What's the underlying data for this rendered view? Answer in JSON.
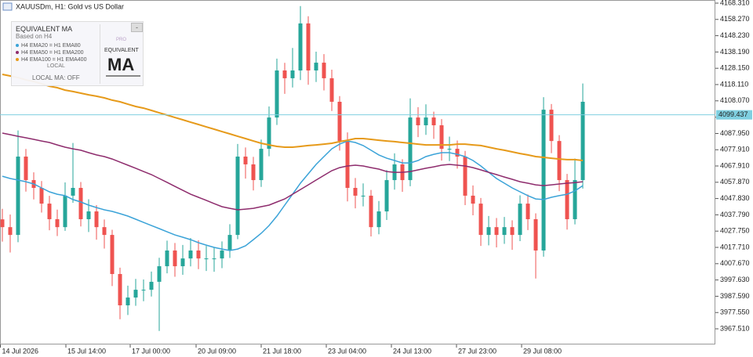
{
  "chart_data": {
    "type": "candlestick",
    "title": "XAUUSDm, H1:  Gold vs US Dollar",
    "open": [
      4035.0,
      4030.2,
      4025.4,
      4073.7,
      4059.2,
      4054.4,
      4044.7,
      4035.1,
      4030.2,
      4049.6,
      4054.4,
      4035.1,
      4039.9,
      4030.2,
      4025.4,
      4001.3,
      3982.0,
      3986.8,
      3991.6,
      3991.6,
      3996.5,
      4006.1,
      4015.8,
      4006.1,
      4010.9,
      4015.8,
      4010.9,
      4010.9,
      4010.9,
      4015.8,
      4025.4,
      4073.7,
      4068.9,
      4059.2,
      4078.5,
      4097.8,
      4126.8,
      4122.0,
      4126.8,
      4155.8,
      4126.8,
      4131.6,
      4122.0,
      4107.5,
      4083.3,
      4054.4,
      4049.6,
      4049.6,
      4030.2,
      4039.9,
      4059.2,
      4068.9,
      4059.2,
      4097.8,
      4093.0,
      4097.8,
      4093.0,
      4078.5,
      4078.5,
      4073.7,
      4049.6,
      4044.7,
      4025.4,
      4030.2,
      4025.4,
      4030.2,
      4025.4,
      4044.7,
      4035.1,
      4015.8,
      4102.6,
      4083.3,
      4059.2,
      4035.1,
      4059.2
    ],
    "high": [
      4041.5,
      4038.0,
      4089.8,
      4078.4,
      4064.0,
      4058.6,
      4049.5,
      4041.0,
      4057.8,
      4082.1,
      4058.0,
      4047.4,
      4043.8,
      4034.9,
      4028.6,
      4005.2,
      3994.1,
      3998.3,
      3997.9,
      4002.8,
      4011.3,
      4021.9,
      4020.4,
      4019.2,
      4023.5,
      4022.1,
      4018.6,
      4017.9,
      4021.4,
      4032.0,
      4081.5,
      4079.3,
      4073.5,
      4084.2,
      4104.6,
      4134.1,
      4131.5,
      4140.7,
      4166.5,
      4160.2,
      4138.4,
      4136.9,
      4127.3,
      4111.0,
      4088.6,
      4060.5,
      4057.2,
      4053.1,
      4046.3,
      4065.4,
      4075.7,
      4072.1,
      4109.6,
      4104.2,
      4105.9,
      4101.4,
      4096.8,
      4086.0,
      4083.6,
      4077.2,
      4055.9,
      4048.2,
      4037.1,
      4035.8,
      4036.5,
      4034.4,
      4049.8,
      4050.3,
      4038.7,
      4110.3,
      4106.1,
      4086.9,
      4063.0,
      4072.5,
      4118.8
    ],
    "low": [
      4021.3,
      4014.6,
      4020.9,
      4052.1,
      4047.3,
      4039.2,
      4028.3,
      4024.7,
      4027.9,
      4045.2,
      4030.6,
      4027.2,
      4022.5,
      4017.0,
      3993.9,
      3973.4,
      3976.0,
      3981.7,
      3984.5,
      3987.4,
      3966.2,
      4001.7,
      3999.6,
      4000.8,
      4006.0,
      4004.3,
      4003.2,
      4002.7,
      4004.9,
      4011.2,
      4022.8,
      4060.1,
      4052.8,
      4055.0,
      4073.9,
      4093.2,
      4112.4,
      4116.3,
      4120.9,
      4118.0,
      4119.7,
      4114.5,
      4101.8,
      4077.4,
      4046.1,
      4041.8,
      4043.0,
      4024.5,
      4025.8,
      4034.6,
      4053.3,
      4052.0,
      4055.4,
      4085.7,
      4087.1,
      4084.6,
      4071.2,
      4070.9,
      4066.3,
      4043.8,
      4037.5,
      4018.6,
      4019.0,
      4017.7,
      4019.9,
      4016.2,
      4021.6,
      4028.4,
      3998.5,
      4012.0,
      4075.8,
      4052.4,
      4028.7,
      4031.9,
      4054.0
    ],
    "close": [
      4030.2,
      4025.4,
      4073.7,
      4059.2,
      4054.4,
      4044.7,
      4035.1,
      4030.2,
      4049.6,
      4054.4,
      4035.1,
      4039.9,
      4030.2,
      4025.4,
      4001.3,
      3982.0,
      3986.8,
      3991.6,
      3991.6,
      3996.5,
      4006.1,
      4015.8,
      4006.1,
      4010.9,
      4015.8,
      4010.9,
      4010.9,
      4010.9,
      4015.8,
      4025.4,
      4073.7,
      4068.9,
      4059.2,
      4078.5,
      4097.8,
      4126.8,
      4122.0,
      4126.8,
      4155.8,
      4126.8,
      4131.6,
      4122.0,
      4107.5,
      4083.3,
      4054.4,
      4049.6,
      4049.6,
      4030.2,
      4039.9,
      4059.2,
      4068.9,
      4059.2,
      4097.8,
      4093.0,
      4097.8,
      4093.0,
      4078.5,
      4078.5,
      4073.7,
      4049.6,
      4044.7,
      4025.4,
      4030.2,
      4025.4,
      4030.2,
      4025.4,
      4044.7,
      4035.1,
      4015.8,
      4102.6,
      4083.3,
      4059.2,
      4035.1,
      4059.2,
      4107.5
    ],
    "up_color": "#26a69a",
    "down_color": "#ef5350",
    "series": [
      {
        "name": "H4 EMA20 = H1 EMA80",
        "color": "#3ba3d8",
        "values": [
          4061.6,
          4060.2,
          4059.2,
          4058.2,
          4056.8,
          4054.4,
          4052.0,
          4050.5,
          4049.6,
          4047.2,
          4045.7,
          4043.8,
          4042.3,
          4040.9,
          4039.9,
          4038.5,
          4037.0,
          4035.1,
          4033.1,
          4031.2,
          4029.3,
          4027.3,
          4025.4,
          4024.0,
          4022.5,
          4020.6,
          4019.1,
          4017.7,
          4016.7,
          4015.8,
          4016.7,
          4018.7,
          4022.5,
          4026.4,
          4031.2,
          4037.0,
          4043.8,
          4050.5,
          4057.3,
          4063.1,
          4068.9,
          4073.7,
          4078.5,
          4081.4,
          4083.3,
          4082.4,
          4080.5,
          4077.6,
          4074.7,
          4072.7,
          4071.3,
          4069.8,
          4069.8,
          4071.3,
          4073.7,
          4075.1,
          4076.1,
          4076.1,
          4075.1,
          4073.7,
          4071.3,
          4067.9,
          4064.0,
          4060.2,
          4057.3,
          4054.4,
          4052.0,
          4049.6,
          4047.6,
          4047.2,
          4048.6,
          4049.6,
          4050.5,
          4052.5,
          4055.8
        ]
      },
      {
        "name": "H4 EMA50 = H1 EMA200",
        "color": "#8e2c6d",
        "values": [
          4088.2,
          4087.2,
          4086.2,
          4085.3,
          4084.3,
          4083.3,
          4082.4,
          4080.9,
          4079.5,
          4078.5,
          4077.6,
          4076.1,
          4074.7,
          4073.7,
          4072.2,
          4070.3,
          4068.4,
          4066.5,
          4064.5,
          4062.6,
          4060.2,
          4057.8,
          4055.3,
          4052.9,
          4050.5,
          4048.6,
          4046.7,
          4044.7,
          4042.8,
          4041.8,
          4040.9,
          4041.3,
          4041.8,
          4042.8,
          4043.8,
          4045.7,
          4047.6,
          4050.5,
          4053.4,
          4056.3,
          4059.2,
          4062.1,
          4065.0,
          4066.9,
          4067.9,
          4068.4,
          4067.9,
          4066.9,
          4066.0,
          4064.5,
          4064.0,
          4064.0,
          4064.5,
          4065.5,
          4066.5,
          4067.4,
          4068.4,
          4068.9,
          4068.4,
          4067.9,
          4066.9,
          4065.5,
          4064.0,
          4062.6,
          4061.1,
          4059.7,
          4058.2,
          4057.3,
          4056.3,
          4055.8,
          4056.3,
          4056.8,
          4057.3,
          4057.7,
          4058.2
        ]
      },
      {
        "name": "H4 EMA100 = H1 EMA400",
        "color": "#e69a1a",
        "values": [
          4124.4,
          4123.4,
          4122.4,
          4121.0,
          4120.0,
          4118.6,
          4117.1,
          4116.2,
          4114.7,
          4113.8,
          4112.8,
          4111.8,
          4110.9,
          4109.9,
          4108.5,
          4107.5,
          4106.0,
          4104.6,
          4103.6,
          4102.2,
          4100.7,
          4099.3,
          4097.8,
          4096.4,
          4094.9,
          4093.5,
          4092.0,
          4090.6,
          4089.1,
          4087.7,
          4086.2,
          4084.8,
          4083.3,
          4081.9,
          4080.9,
          4080.0,
          4079.5,
          4079.5,
          4080.0,
          4080.5,
          4080.9,
          4081.4,
          4081.9,
          4082.9,
          4083.8,
          4084.8,
          4084.8,
          4084.3,
          4083.8,
          4083.3,
          4082.9,
          4082.4,
          4081.9,
          4081.4,
          4080.9,
          4080.9,
          4080.9,
          4080.9,
          4081.4,
          4081.4,
          4080.9,
          4080.5,
          4079.5,
          4078.5,
          4077.6,
          4076.6,
          4075.6,
          4074.7,
          4073.7,
          4073.2,
          4072.7,
          4072.2,
          4071.8,
          4071.8,
          4071.3
        ]
      }
    ],
    "last_price": 4099.437,
    "last_price_color": "#7fcfe0",
    "ylim": [
      3957.86,
      4170.24
    ],
    "yticks": [
      {
        "value": 4168.31,
        "label": "4168.310"
      },
      {
        "value": 4158.27,
        "label": "4158.270"
      },
      {
        "value": 4148.23,
        "label": "4148.230"
      },
      {
        "value": 4138.19,
        "label": "4138.190"
      },
      {
        "value": 4128.15,
        "label": "4128.150"
      },
      {
        "value": 4118.11,
        "label": "4118.110"
      },
      {
        "value": 4108.07,
        "label": "4108.070"
      },
      {
        "value": 4097.99,
        "label": "4097.990"
      },
      {
        "value": 4087.95,
        "label": "4087.950"
      },
      {
        "value": 4077.91,
        "label": "4077.910"
      },
      {
        "value": 4067.91,
        "label": "4067.910"
      },
      {
        "value": 4057.87,
        "label": "4057.870"
      },
      {
        "value": 4047.83,
        "label": "4047.830"
      },
      {
        "value": 4037.79,
        "label": "4037.790"
      },
      {
        "value": 4027.75,
        "label": "4027.750"
      },
      {
        "value": 4017.71,
        "label": "4017.710"
      },
      {
        "value": 4007.67,
        "label": "4007.670"
      },
      {
        "value": 3997.63,
        "label": "3997.630"
      },
      {
        "value": 3987.59,
        "label": "3987.590"
      },
      {
        "value": 3977.55,
        "label": "3977.550"
      },
      {
        "value": 3967.51,
        "label": "3967.510"
      }
    ],
    "xlim": [
      -0.3,
      90.9
    ],
    "xticks": [
      {
        "value": -0.3,
        "label": "14 Jul 2026"
      },
      {
        "value": 8.1,
        "label": "15 Jul 14:00"
      },
      {
        "value": 16.3,
        "label": "17 Jul 00:00"
      },
      {
        "value": 24.7,
        "label": "20 Jul 09:00"
      },
      {
        "value": 33,
        "label": "21 Jul 18:00"
      },
      {
        "value": 41.3,
        "label": "23 Jul 04:00"
      },
      {
        "value": 49.6,
        "label": "24 Jul 13:00"
      },
      {
        "value": 57.9,
        "label": "27 Jul 23:00"
      },
      {
        "value": 66.2,
        "label": "29 Jul 08:00"
      }
    ],
    "grid": false
  },
  "panel": {
    "title": "EQUIVALENT MA",
    "subtitle": "Based on H4",
    "local": "LOCAL",
    "local_ma": "LOCAL MA: OFF",
    "badge": "PRO",
    "logo_title": "EQUIVALENT",
    "logo_text": "MA",
    "button": "-"
  }
}
